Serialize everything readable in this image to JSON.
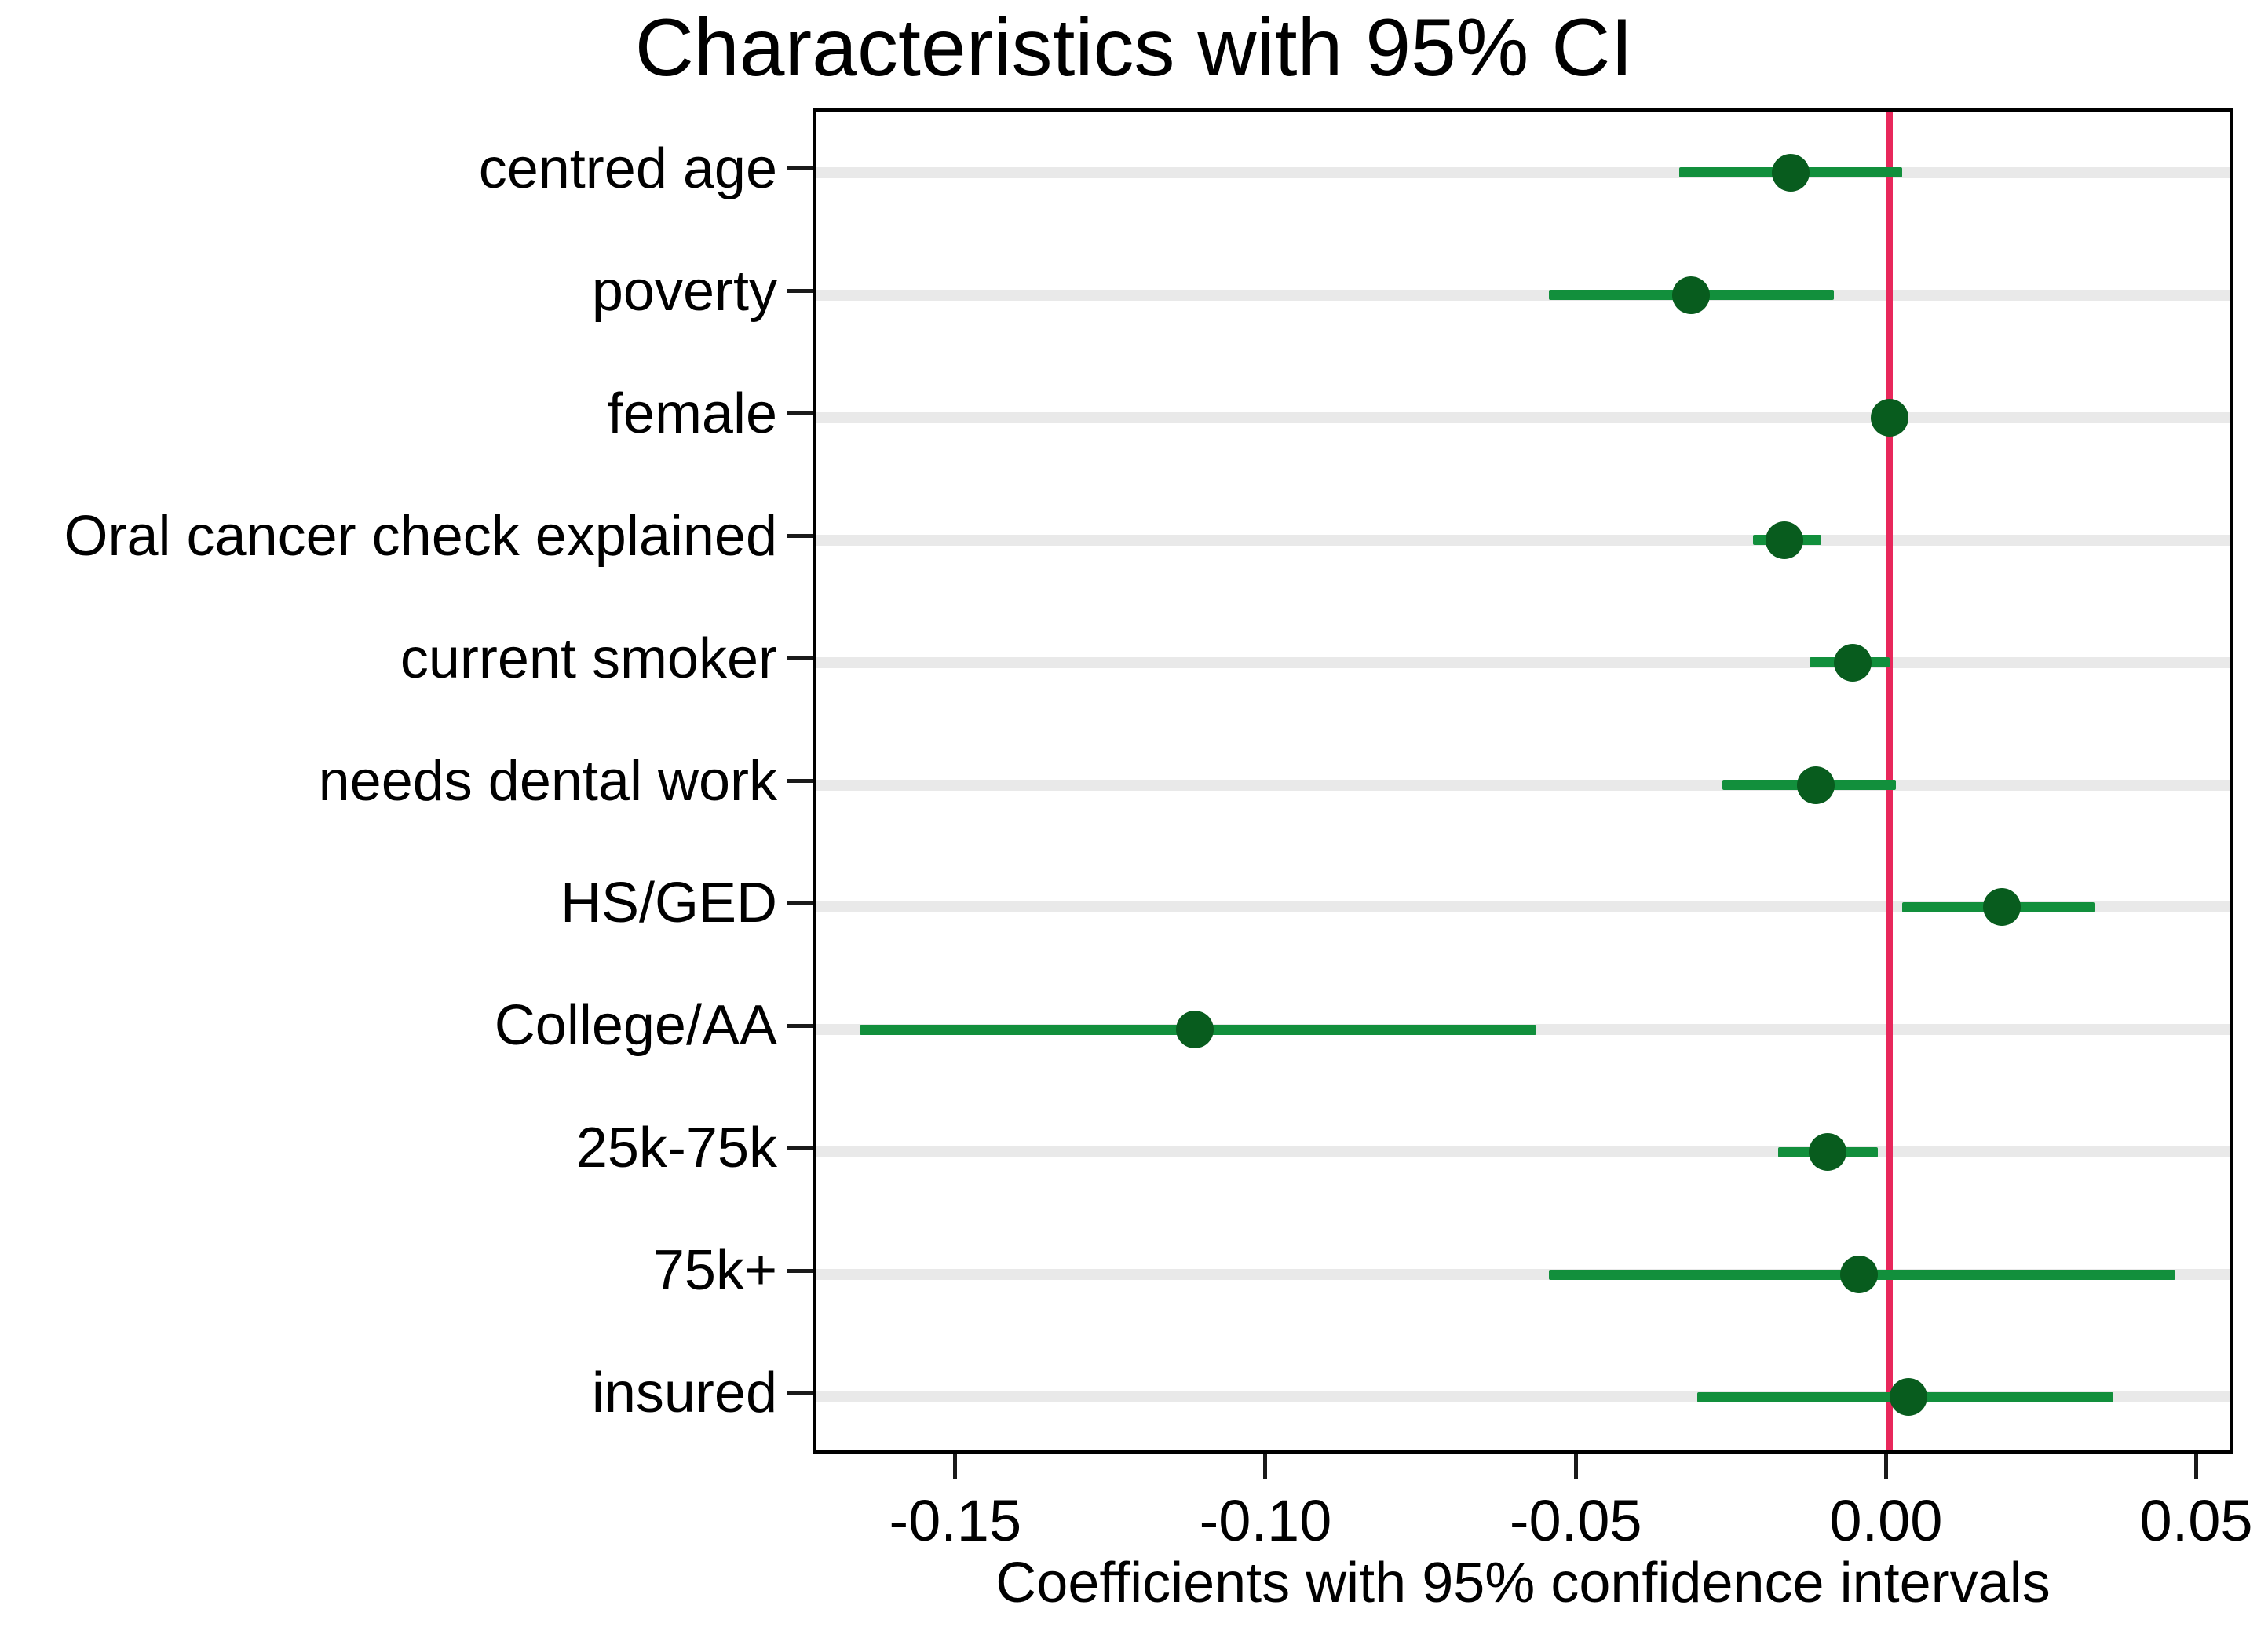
{
  "figure": {
    "title": "Characteristics with 95% CI",
    "xlabel": "Coefficients with 95% confidence intervals"
  },
  "colors": {
    "marker": "#085c1e",
    "ci_line": "#128f3c",
    "zero_line": "#e8275b",
    "gridline": "#e9e9e9",
    "axis_box": "#000000",
    "tick": "#1a1a1a"
  },
  "chart_data": {
    "type": "scatter",
    "subtype": "coefficient-forest-plot",
    "orientation": "horizontal",
    "title": "Characteristics with 95% CI",
    "xlabel": "Coefficients with 95% confidence intervals",
    "ylabel": "",
    "grid": true,
    "legend": false,
    "zero_line_x": 0,
    "xlim": [
      -0.173,
      0.056
    ],
    "x_ticks": [
      -0.15,
      -0.1,
      -0.05,
      0.0,
      0.05
    ],
    "x_tick_labels": [
      "-0.15",
      "-0.10",
      "-0.05",
      "0.00",
      "0.05"
    ],
    "rows": [
      {
        "label": "centred age",
        "estimate": -0.016,
        "ci_low": -0.034,
        "ci_high": 0.002
      },
      {
        "label": "poverty",
        "estimate": -0.032,
        "ci_low": -0.055,
        "ci_high": -0.009
      },
      {
        "label": "female",
        "estimate": 0.0,
        "ci_low": -0.002,
        "ci_high": 0.002
      },
      {
        "label": "Oral cancer check explained",
        "estimate": -0.017,
        "ci_low": -0.022,
        "ci_high": -0.011
      },
      {
        "label": "current smoker",
        "estimate": -0.006,
        "ci_low": -0.013,
        "ci_high": 0.0
      },
      {
        "label": "needs dental work",
        "estimate": -0.012,
        "ci_low": -0.027,
        "ci_high": 0.001
      },
      {
        "label": "HS/GED",
        "estimate": 0.018,
        "ci_low": 0.002,
        "ci_high": 0.033
      },
      {
        "label": "College/AA",
        "estimate": -0.112,
        "ci_low": -0.166,
        "ci_high": -0.057
      },
      {
        "label": "25k-75k",
        "estimate": -0.01,
        "ci_low": -0.018,
        "ci_high": -0.002
      },
      {
        "label": "75k+",
        "estimate": -0.005,
        "ci_low": -0.055,
        "ci_high": 0.046
      },
      {
        "label": "insured",
        "estimate": 0.003,
        "ci_low": -0.031,
        "ci_high": 0.036
      }
    ]
  }
}
